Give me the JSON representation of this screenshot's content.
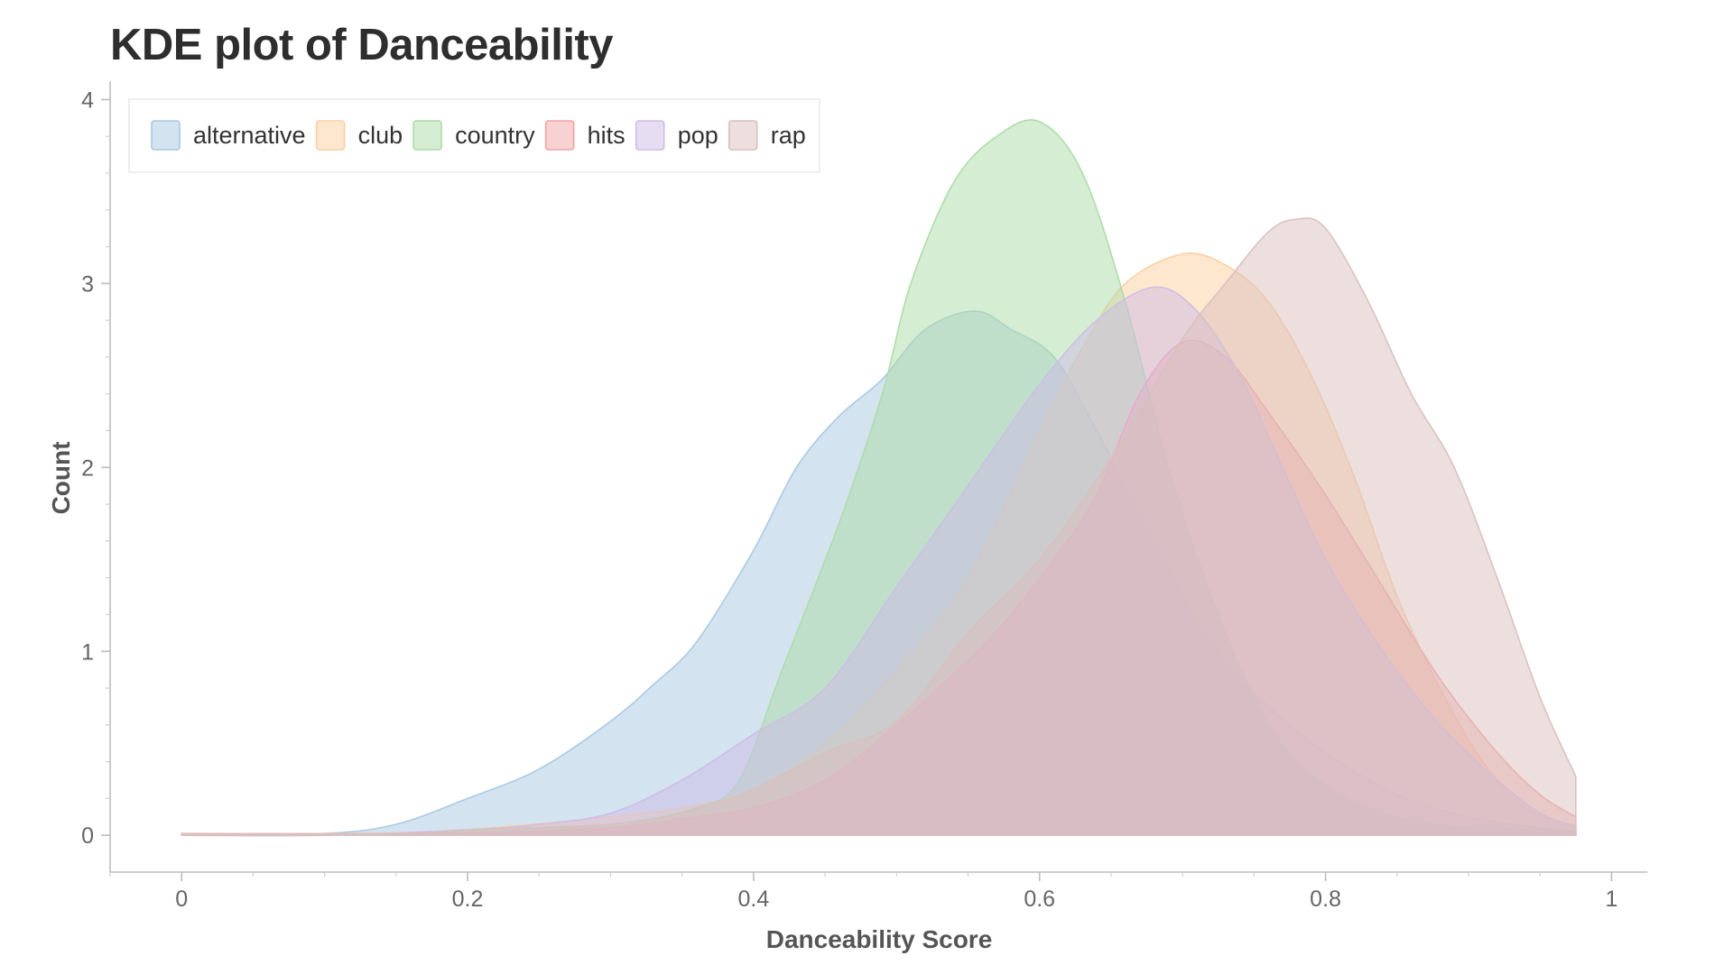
{
  "chart_data": {
    "type": "area",
    "title": "KDE plot of Danceability",
    "xlabel": "Danceability Score",
    "ylabel": "Count",
    "xlim": [
      -0.05,
      1.025
    ],
    "ylim": [
      -0.2,
      4.1
    ],
    "xticks": [
      0,
      0.2,
      0.4,
      0.6,
      0.8,
      1
    ],
    "xtick_labels": [
      "0",
      "0.2",
      "0.4",
      "0.6",
      "0.8",
      "1"
    ],
    "yticks": [
      0,
      1,
      2,
      3,
      4
    ],
    "ytick_labels": [
      "0",
      "1",
      "2",
      "3",
      "4"
    ],
    "grid": false,
    "legend_position": "top-left",
    "series": [
      {
        "name": "alternative",
        "color": "#a8c8e2",
        "points": [
          [
            0.0,
            0
          ],
          [
            0.1,
            0.01
          ],
          [
            0.15,
            0.06
          ],
          [
            0.2,
            0.2
          ],
          [
            0.25,
            0.36
          ],
          [
            0.3,
            0.62
          ],
          [
            0.33,
            0.82
          ],
          [
            0.36,
            1.05
          ],
          [
            0.4,
            1.55
          ],
          [
            0.43,
            2.0
          ],
          [
            0.46,
            2.28
          ],
          [
            0.49,
            2.48
          ],
          [
            0.52,
            2.75
          ],
          [
            0.555,
            2.85
          ],
          [
            0.58,
            2.75
          ],
          [
            0.61,
            2.6
          ],
          [
            0.64,
            2.2
          ],
          [
            0.67,
            1.75
          ],
          [
            0.7,
            1.3
          ],
          [
            0.73,
            0.95
          ],
          [
            0.76,
            0.7
          ],
          [
            0.8,
            0.45
          ],
          [
            0.85,
            0.22
          ],
          [
            0.9,
            0.1
          ],
          [
            0.95,
            0.04
          ],
          [
            0.975,
            0.02
          ]
        ]
      },
      {
        "name": "club",
        "color": "#fdcfa0",
        "points": [
          [
            0.0,
            0.01
          ],
          [
            0.15,
            0.01
          ],
          [
            0.2,
            0.03
          ],
          [
            0.3,
            0.1
          ],
          [
            0.35,
            0.15
          ],
          [
            0.4,
            0.25
          ],
          [
            0.45,
            0.5
          ],
          [
            0.5,
            0.9
          ],
          [
            0.55,
            1.4
          ],
          [
            0.6,
            2.2
          ],
          [
            0.63,
            2.65
          ],
          [
            0.66,
            3.0
          ],
          [
            0.7,
            3.16
          ],
          [
            0.73,
            3.1
          ],
          [
            0.76,
            2.9
          ],
          [
            0.79,
            2.5
          ],
          [
            0.82,
            1.95
          ],
          [
            0.85,
            1.3
          ],
          [
            0.88,
            0.8
          ],
          [
            0.91,
            0.4
          ],
          [
            0.94,
            0.15
          ],
          [
            0.975,
            0.05
          ]
        ]
      },
      {
        "name": "country",
        "color": "#acdca6",
        "points": [
          [
            0.1,
            0
          ],
          [
            0.2,
            0.02
          ],
          [
            0.3,
            0.06
          ],
          [
            0.36,
            0.15
          ],
          [
            0.39,
            0.3
          ],
          [
            0.42,
            0.9
          ],
          [
            0.46,
            1.7
          ],
          [
            0.49,
            2.4
          ],
          [
            0.51,
            3.0
          ],
          [
            0.54,
            3.55
          ],
          [
            0.57,
            3.8
          ],
          [
            0.6,
            3.88
          ],
          [
            0.63,
            3.6
          ],
          [
            0.66,
            2.9
          ],
          [
            0.69,
            2.0
          ],
          [
            0.72,
            1.3
          ],
          [
            0.75,
            0.75
          ],
          [
            0.78,
            0.4
          ],
          [
            0.82,
            0.18
          ],
          [
            0.86,
            0.08
          ],
          [
            0.9,
            0.04
          ],
          [
            0.95,
            0.03
          ],
          [
            0.975,
            0.02
          ]
        ]
      },
      {
        "name": "hits",
        "color": "#f2a3a5",
        "points": [
          [
            0.0,
            0
          ],
          [
            0.1,
            0
          ],
          [
            0.2,
            0.01
          ],
          [
            0.3,
            0.04
          ],
          [
            0.36,
            0.1
          ],
          [
            0.4,
            0.15
          ],
          [
            0.45,
            0.3
          ],
          [
            0.5,
            0.6
          ],
          [
            0.55,
            0.95
          ],
          [
            0.58,
            1.2
          ],
          [
            0.61,
            1.5
          ],
          [
            0.64,
            1.85
          ],
          [
            0.67,
            2.4
          ],
          [
            0.7,
            2.68
          ],
          [
            0.73,
            2.6
          ],
          [
            0.76,
            2.3
          ],
          [
            0.8,
            1.85
          ],
          [
            0.84,
            1.35
          ],
          [
            0.88,
            0.85
          ],
          [
            0.92,
            0.45
          ],
          [
            0.95,
            0.22
          ],
          [
            0.975,
            0.1
          ]
        ]
      },
      {
        "name": "pop",
        "color": "#cdbce6",
        "points": [
          [
            0.0,
            0
          ],
          [
            0.1,
            0
          ],
          [
            0.2,
            0.03
          ],
          [
            0.25,
            0.06
          ],
          [
            0.3,
            0.12
          ],
          [
            0.35,
            0.3
          ],
          [
            0.4,
            0.55
          ],
          [
            0.45,
            0.8
          ],
          [
            0.5,
            1.35
          ],
          [
            0.55,
            1.9
          ],
          [
            0.6,
            2.45
          ],
          [
            0.64,
            2.8
          ],
          [
            0.68,
            2.98
          ],
          [
            0.71,
            2.85
          ],
          [
            0.74,
            2.5
          ],
          [
            0.77,
            2.0
          ],
          [
            0.8,
            1.5
          ],
          [
            0.84,
            1.0
          ],
          [
            0.88,
            0.6
          ],
          [
            0.92,
            0.3
          ],
          [
            0.95,
            0.12
          ],
          [
            0.975,
            0.05
          ]
        ]
      },
      {
        "name": "rap",
        "color": "#d9c0bd",
        "points": [
          [
            0.0,
            0.01
          ],
          [
            0.15,
            0.01
          ],
          [
            0.2,
            0.03
          ],
          [
            0.3,
            0.06
          ],
          [
            0.35,
            0.12
          ],
          [
            0.4,
            0.25
          ],
          [
            0.45,
            0.45
          ],
          [
            0.5,
            0.62
          ],
          [
            0.55,
            1.1
          ],
          [
            0.6,
            1.5
          ],
          [
            0.65,
            2.05
          ],
          [
            0.7,
            2.7
          ],
          [
            0.73,
            3.0
          ],
          [
            0.76,
            3.28
          ],
          [
            0.78,
            3.35
          ],
          [
            0.8,
            3.3
          ],
          [
            0.83,
            2.9
          ],
          [
            0.86,
            2.4
          ],
          [
            0.89,
            2.0
          ],
          [
            0.92,
            1.4
          ],
          [
            0.95,
            0.75
          ],
          [
            0.975,
            0.32
          ]
        ]
      }
    ]
  }
}
